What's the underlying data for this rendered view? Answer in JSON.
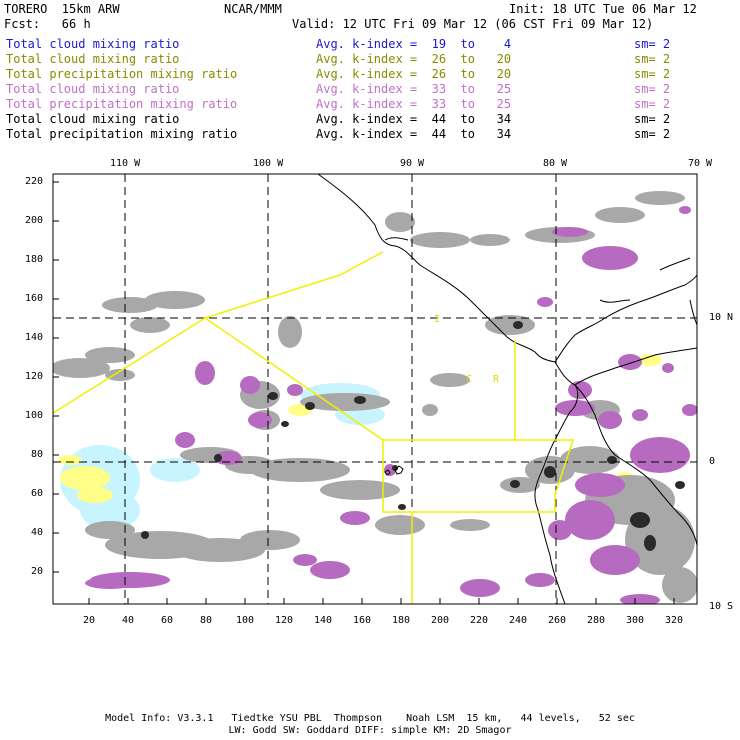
{
  "header": {
    "model": "TORERO  15km ARW",
    "center": "NCAR/MMM",
    "init": "Init: 18 UTC Tue 06 Mar 12",
    "fcst": "Fcst:   66 h",
    "valid": "Valid: 12 UTC Fri 09 Mar 12 (06 CST Fri 09 Mar 12)"
  },
  "legend": [
    {
      "field": "Total cloud mixing ratio",
      "avg": "Avg. k-index =  19  to    4",
      "sm": "sm= 2",
      "color": "#1a1acc"
    },
    {
      "field": "Total cloud mixing ratio",
      "avg": "Avg. k-index =  26  to   20",
      "sm": "sm= 2",
      "color": "#8a8a00"
    },
    {
      "field": "Total precipitation mixing ratio",
      "avg": "Avg. k-index =  26  to   20",
      "sm": "sm= 2",
      "color": "#8a8a00"
    },
    {
      "field": "Total cloud mixing ratio",
      "avg": "Avg. k-index =  33  to   25",
      "sm": "sm= 2",
      "color": "#c070c8"
    },
    {
      "field": "Total precipitation mixing ratio",
      "avg": "Avg. k-index =  33  to   25",
      "sm": "sm= 2",
      "color": "#c070c8"
    },
    {
      "field": "Total cloud mixing ratio",
      "avg": "Avg. k-index =  44  to   34",
      "sm": "sm= 2",
      "color": "#000000"
    },
    {
      "field": "Total precipitation mixing ratio",
      "avg": "Avg. k-index =  44  to   34",
      "sm": "sm= 2",
      "color": "#000000"
    }
  ],
  "axes": {
    "lon_top": [
      "110 W",
      "100 W",
      "90 W",
      "80 W",
      "70 W"
    ],
    "lat_right": [
      "10 N",
      "0",
      "10 S"
    ],
    "y_left": [
      "220",
      "200",
      "180",
      "160",
      "140",
      "120",
      "100",
      "80",
      "60",
      "40",
      "20"
    ],
    "x_bottom": [
      "20",
      "40",
      "60",
      "80",
      "100",
      "120",
      "140",
      "160",
      "180",
      "200",
      "220",
      "240",
      "260",
      "280",
      "300",
      "320"
    ]
  },
  "region_labels": {
    "i": "I",
    "c": "C",
    "r": "R"
  },
  "colors": {
    "cloud_gray": "#a8a8a8",
    "precip_purple": "#b66bc0",
    "light_yellow": "#ffff88",
    "light_cyan": "#c8f4ff",
    "dark": "#2a2a2a",
    "box_yellow": "#f0f000"
  },
  "footer": {
    "line1": "Model Info: V3.3.1   Tiedtke YSU PBL  Thompson    Noah LSM  15 km,   44 levels,   52 sec",
    "line2": "LW: Godd SW: Goddard DIFF: simple KM: 2D Smagor"
  }
}
